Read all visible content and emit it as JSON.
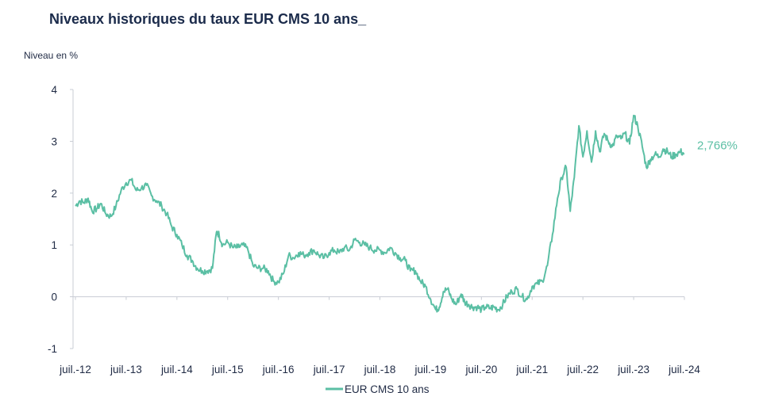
{
  "title": "Niveaux historiques du taux EUR CMS 10 ans_",
  "ylabel": "Niveau en %",
  "colors": {
    "series": "#5bbfa4",
    "axis": "#c8ccd4",
    "text": "#1f2a44",
    "title": "#1b2b4b"
  },
  "chart_data": {
    "type": "line",
    "title": "Niveaux historiques du taux EUR CMS 10 ans_",
    "xlabel": "",
    "ylabel": "Niveau en %",
    "ylim": [
      -1,
      4
    ],
    "xlim": [
      2012.5,
      2024.5
    ],
    "yticks": [
      4,
      3,
      2,
      1,
      0,
      -1
    ],
    "xticks": [
      {
        "x": 2012.5,
        "label": "juil.-12"
      },
      {
        "x": 2013.5,
        "label": "juil.-13"
      },
      {
        "x": 2014.5,
        "label": "juil.-14"
      },
      {
        "x": 2015.5,
        "label": "juil.-15"
      },
      {
        "x": 2016.5,
        "label": "juil.-16"
      },
      {
        "x": 2017.5,
        "label": "juil.-17"
      },
      {
        "x": 2018.5,
        "label": "juil.-18"
      },
      {
        "x": 2019.5,
        "label": "juil.-19"
      },
      {
        "x": 2020.5,
        "label": "juil.-20"
      },
      {
        "x": 2021.5,
        "label": "juil.-21"
      },
      {
        "x": 2022.5,
        "label": "juil.-22"
      },
      {
        "x": 2023.5,
        "label": "juil.-23"
      },
      {
        "x": 2024.5,
        "label": "juil.-24"
      }
    ],
    "grid": false,
    "legend": "bottom-center",
    "last_value_label": "2,766%",
    "series": [
      {
        "name": "EUR CMS 10 ans",
        "x": [
          2012.5,
          2012.58,
          2012.67,
          2012.75,
          2012.83,
          2012.92,
          2013.0,
          2013.1,
          2013.2,
          2013.3,
          2013.4,
          2013.5,
          2013.6,
          2013.7,
          2013.8,
          2013.9,
          2014.0,
          2014.1,
          2014.2,
          2014.3,
          2014.4,
          2014.5,
          2014.6,
          2014.7,
          2014.8,
          2014.9,
          2015.0,
          2015.1,
          2015.2,
          2015.28,
          2015.33,
          2015.4,
          2015.5,
          2015.6,
          2015.7,
          2015.8,
          2015.9,
          2016.0,
          2016.1,
          2016.2,
          2016.3,
          2016.4,
          2016.5,
          2016.6,
          2016.7,
          2016.8,
          2016.9,
          2017.0,
          2017.1,
          2017.2,
          2017.3,
          2017.4,
          2017.5,
          2017.6,
          2017.7,
          2017.8,
          2017.9,
          2018.0,
          2018.1,
          2018.2,
          2018.3,
          2018.4,
          2018.5,
          2018.6,
          2018.7,
          2018.8,
          2018.9,
          2019.0,
          2019.1,
          2019.2,
          2019.3,
          2019.4,
          2019.5,
          2019.6,
          2019.67,
          2019.75,
          2019.83,
          2019.92,
          2020.0,
          2020.1,
          2020.17,
          2020.25,
          2020.33,
          2020.42,
          2020.5,
          2020.58,
          2020.67,
          2020.75,
          2020.83,
          2020.92,
          2021.0,
          2021.1,
          2021.2,
          2021.3,
          2021.4,
          2021.5,
          2021.6,
          2021.7,
          2021.8,
          2021.9,
          2022.0,
          2022.08,
          2022.17,
          2022.25,
          2022.33,
          2022.42,
          2022.5,
          2022.58,
          2022.67,
          2022.75,
          2022.83,
          2022.92,
          2023.0,
          2023.08,
          2023.17,
          2023.25,
          2023.33,
          2023.42,
          2023.5,
          2023.58,
          2023.67,
          2023.75,
          2023.83,
          2023.92,
          2024.0,
          2024.08,
          2024.17,
          2024.25,
          2024.33,
          2024.42,
          2024.5
        ],
        "values": [
          1.75,
          1.85,
          1.82,
          1.9,
          1.65,
          1.7,
          1.8,
          1.6,
          1.55,
          1.75,
          2.05,
          2.2,
          2.25,
          2.05,
          2.1,
          2.15,
          1.95,
          1.85,
          1.75,
          1.6,
          1.35,
          1.2,
          1.0,
          0.8,
          0.7,
          0.55,
          0.5,
          0.5,
          0.55,
          1.25,
          1.2,
          1.0,
          1.05,
          0.95,
          0.95,
          1.0,
          0.9,
          0.6,
          0.55,
          0.55,
          0.5,
          0.3,
          0.28,
          0.45,
          0.8,
          0.75,
          0.85,
          0.8,
          0.85,
          0.9,
          0.8,
          0.75,
          0.85,
          0.9,
          0.85,
          0.95,
          0.9,
          1.1,
          1.05,
          1.0,
          0.95,
          0.9,
          0.9,
          0.85,
          0.95,
          0.85,
          0.75,
          0.7,
          0.5,
          0.5,
          0.3,
          0.2,
          -0.05,
          -0.25,
          -0.2,
          0.1,
          0.15,
          -0.05,
          -0.15,
          0.05,
          -0.1,
          -0.15,
          -0.2,
          -0.2,
          -0.25,
          -0.2,
          -0.22,
          -0.2,
          -0.25,
          -0.15,
          0.0,
          0.1,
          0.15,
          0.0,
          -0.05,
          0.2,
          0.25,
          0.3,
          0.6,
          1.2,
          1.9,
          2.3,
          2.5,
          1.65,
          2.3,
          3.3,
          2.7,
          3.2,
          2.6,
          3.2,
          2.8,
          3.15,
          3.0,
          2.9,
          3.1,
          3.05,
          3.15,
          2.95,
          3.5,
          3.3,
          2.9,
          2.5,
          2.65,
          2.75,
          2.7,
          2.85,
          2.8,
          2.7,
          2.75,
          2.8,
          2.766
        ]
      }
    ]
  }
}
